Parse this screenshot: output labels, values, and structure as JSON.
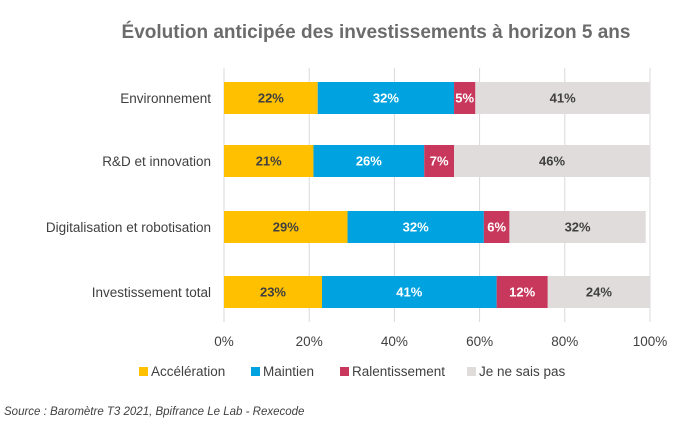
{
  "chart_data": {
    "type": "bar",
    "orientation": "horizontal",
    "stacked": true,
    "title": "Évolution anticipée des investissements à horizon 5 ans",
    "categories": [
      "Environnement",
      "R&D et innovation",
      "Digitalisation et robotisation",
      "Investissement total"
    ],
    "series": [
      {
        "name": "Accélération",
        "color": "#ffc000",
        "label_color": "#404040",
        "values": [
          22,
          21,
          29,
          23
        ]
      },
      {
        "name": "Maintien",
        "color": "#00a3e0",
        "label_color": "#ffffff",
        "values": [
          32,
          26,
          32,
          41
        ]
      },
      {
        "name": "Ralentissement",
        "color": "#c8385c",
        "label_color": "#ffffff",
        "values": [
          5,
          7,
          6,
          12
        ]
      },
      {
        "name": "Je ne sais pas",
        "color": "#e0dcdc",
        "label_color": "#404040",
        "values": [
          41,
          46,
          32,
          24
        ]
      }
    ],
    "value_suffix": "%",
    "xlim": [
      0,
      100
    ],
    "xticks": [
      "0%",
      "20%",
      "40%",
      "60%",
      "80%",
      "100%"
    ],
    "grid": true,
    "legend_position": "bottom",
    "source": "Source : Baromètre T3 2021, Bpifrance Le Lab - Rexecode"
  }
}
